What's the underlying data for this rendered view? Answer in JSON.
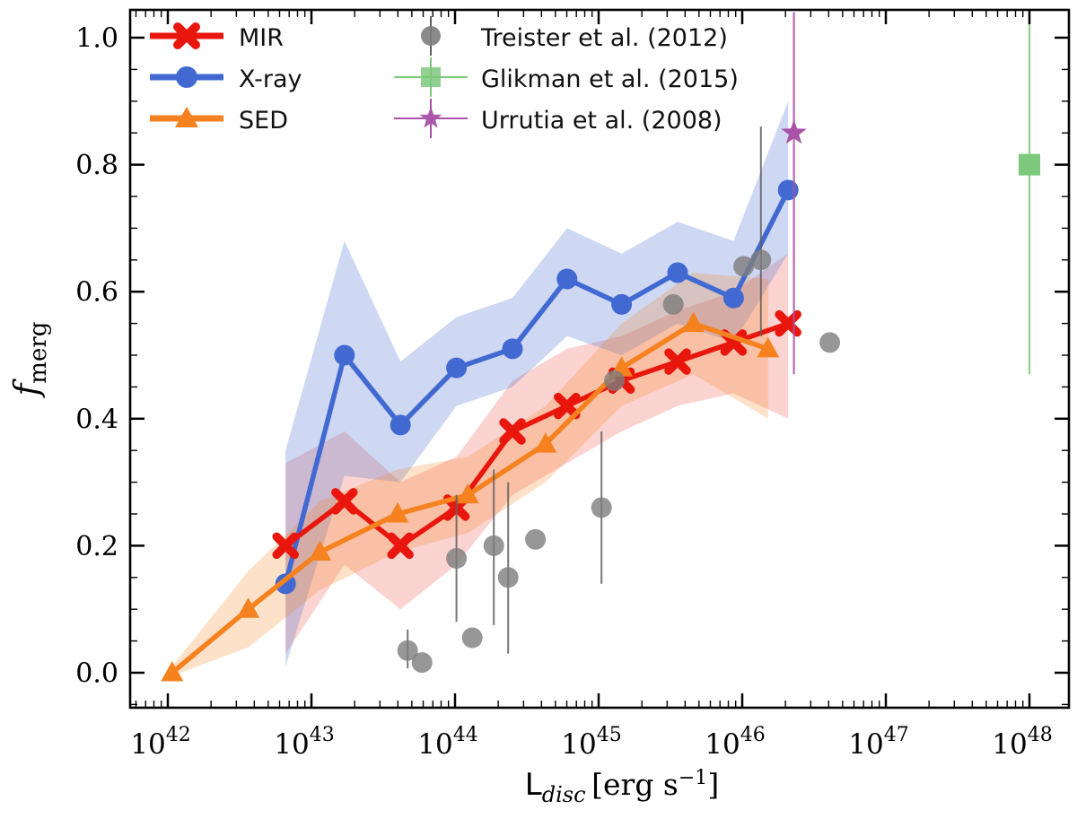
{
  "figure": {
    "background": "#ffffff",
    "axis_color": "#000000"
  },
  "legend": {
    "items": [
      {
        "label": "MIR",
        "marker": "x-cross",
        "color": "#e8160c"
      },
      {
        "label": "X-ray",
        "marker": "circle",
        "color": "#4169d1"
      },
      {
        "label": "SED",
        "marker": "triangle-up",
        "color": "#f5821f"
      },
      {
        "label": "Treister et al. (2012)",
        "marker": "circle-errorbar",
        "color": "#7d7d7d"
      },
      {
        "label": "Glikman et al. (2015)",
        "marker": "square-errorbar",
        "color": "#7cc87c"
      },
      {
        "label": "Urrutia et al. (2008)",
        "marker": "star-errorbar",
        "color": "#a953a8"
      }
    ]
  },
  "chart_data": {
    "type": "line",
    "title": "",
    "x_scale": "log",
    "xlabel": "L_disc [erg s^-1]",
    "xlabel_parts": {
      "main": "L",
      "sub": "disc",
      "unit_pre": "[erg s",
      "unit_sup": "−1",
      "unit_post": "]"
    },
    "ylabel": "f_merg",
    "ylabel_parts": {
      "main": "f",
      "sub": "merg"
    },
    "x_tick_base": "10",
    "x_tick_exponents": [
      42,
      43,
      44,
      45,
      46,
      47,
      48
    ],
    "x_range_log": [
      41.74,
      48.28
    ],
    "y_range": [
      -0.055,
      1.044
    ],
    "y_ticks": [
      {
        "value": 0.0,
        "label": "0.0"
      },
      {
        "value": 0.2,
        "label": "0.2"
      },
      {
        "value": 0.4,
        "label": "0.4"
      },
      {
        "value": 0.6,
        "label": "0.6"
      },
      {
        "value": 0.8,
        "label": "0.8"
      },
      {
        "value": 1.0,
        "label": "1.0"
      }
    ],
    "y_minor_step": 0.05,
    "grid": false,
    "legend_position": "upper left",
    "z_order": [
      "X-ray",
      "MIR",
      "SED"
    ],
    "series": [
      {
        "name": "MIR",
        "color": "#e8160c",
        "band_color": "rgba(235,40,30,0.20)",
        "marker": "x-cross",
        "log_x": [
          42.82,
          43.23,
          43.62,
          44.01,
          44.4,
          44.78,
          45.16,
          45.55,
          45.94,
          46.32
        ],
        "y": [
          0.2,
          0.27,
          0.2,
          0.26,
          0.38,
          0.42,
          0.46,
          0.49,
          0.52,
          0.55
        ],
        "band_upper": [
          0.33,
          0.38,
          0.3,
          0.34,
          0.46,
          0.51,
          0.53,
          0.57,
          0.6,
          0.66
        ],
        "band_lower": [
          0.03,
          0.17,
          0.1,
          0.17,
          0.28,
          0.33,
          0.38,
          0.42,
          0.44,
          0.4
        ]
      },
      {
        "name": "X-ray",
        "color": "#4169d1",
        "band_color": "rgba(65,105,209,0.26)",
        "marker": "circle",
        "log_x": [
          42.82,
          43.23,
          43.62,
          44.01,
          44.4,
          44.78,
          45.16,
          45.55,
          45.94,
          46.32
        ],
        "y": [
          0.14,
          0.5,
          0.39,
          0.48,
          0.51,
          0.62,
          0.58,
          0.63,
          0.59,
          0.76
        ],
        "band_upper": [
          0.35,
          0.68,
          0.49,
          0.56,
          0.59,
          0.7,
          0.66,
          0.71,
          0.68,
          0.9
        ],
        "band_lower": [
          0.01,
          0.31,
          0.3,
          0.42,
          0.45,
          0.53,
          0.5,
          0.55,
          0.52,
          0.66
        ]
      },
      {
        "name": "SED",
        "color": "#f5821f",
        "band_color": "rgba(245,130,31,0.24)",
        "marker": "triangle-up",
        "log_x": [
          42.03,
          42.56,
          43.06,
          43.6,
          44.09,
          44.63,
          45.16,
          45.66,
          46.18
        ],
        "y": [
          0.0,
          0.1,
          0.19,
          0.25,
          0.28,
          0.36,
          0.48,
          0.55,
          0.51
        ],
        "band_upper": [
          0.01,
          0.16,
          0.27,
          0.32,
          0.34,
          0.42,
          0.55,
          0.63,
          0.62
        ],
        "band_lower": [
          -0.005,
          0.04,
          0.13,
          0.19,
          0.22,
          0.3,
          0.42,
          0.47,
          0.4
        ]
      }
    ],
    "scatter": [
      {
        "name": "Treister et al. (2012)",
        "color": "#7d7d7d",
        "marker": "circle",
        "opacity": 0.8,
        "points": [
          {
            "log_x": 43.67,
            "y": 0.035,
            "y_err_low": 0.007,
            "y_err_high": 0.068
          },
          {
            "log_x": 43.77,
            "y": 0.016
          },
          {
            "log_x": 44.01,
            "y": 0.18,
            "y_err_low": 0.08,
            "y_err_high": 0.28
          },
          {
            "log_x": 44.12,
            "y": 0.055
          },
          {
            "log_x": 44.27,
            "y": 0.2,
            "y_err_low": 0.075,
            "y_err_high": 0.32
          },
          {
            "log_x": 44.37,
            "y": 0.15,
            "y_err_low": 0.03,
            "y_err_high": 0.3
          },
          {
            "log_x": 44.56,
            "y": 0.21
          },
          {
            "log_x": 45.02,
            "y": 0.26,
            "y_err_low": 0.14,
            "y_err_high": 0.38
          },
          {
            "log_x": 45.11,
            "y": 0.46
          },
          {
            "log_x": 45.52,
            "y": 0.58
          },
          {
            "log_x": 46.01,
            "y": 0.64
          },
          {
            "log_x": 46.13,
            "y": 0.65,
            "y_err_low": 0.53,
            "y_err_high": 0.86
          },
          {
            "log_x": 46.61,
            "y": 0.52
          }
        ]
      },
      {
        "name": "Glikman et al. (2015)",
        "color": "#7cc87c",
        "marker": "square",
        "opacity": 0.85,
        "points": [
          {
            "log_x": 48.0,
            "y": 0.8,
            "y_err_low": 0.47,
            "y_err_high": 1.04
          }
        ]
      },
      {
        "name": "Urrutia et al. (2008)",
        "color": "#a953a8",
        "marker": "star",
        "opacity": 0.9,
        "points": [
          {
            "log_x": 46.36,
            "y": 0.85,
            "y_err_low": 0.47,
            "y_err_high": 1.04
          }
        ]
      }
    ]
  }
}
